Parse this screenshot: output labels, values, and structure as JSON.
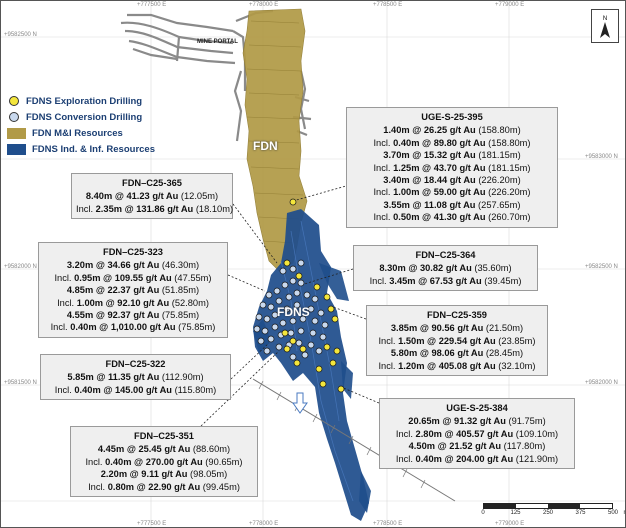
{
  "grid_labels": {
    "top": [
      "+777500 E",
      "+778000 E",
      "+778500 E",
      "+779000 E"
    ],
    "bottom": [
      "+777500 E",
      "+778000 E",
      "+778500 E",
      "+779000 E"
    ],
    "left": [
      "+9582500 N",
      "+9582000 N",
      "+9581500 N"
    ],
    "right": [
      "+9583000 N",
      "+9582500 N",
      "+9582000 N"
    ]
  },
  "legend": {
    "items": [
      {
        "label": "FDNS Exploration Drilling",
        "color": "#f4e63c"
      },
      {
        "label": "FDNS Conversion Drilling",
        "color": "#c9d9ee"
      },
      {
        "label": "FDN M&I Resources",
        "color": "#b19a47"
      },
      {
        "label": "FDNS Ind. & Inf. Resources",
        "color": "#1f4e8c"
      }
    ]
  },
  "labels": {
    "mine_portal": "MINE PORTAL",
    "fdn": "FDN",
    "fdns": "FDNS"
  },
  "scale": {
    "ticks": [
      "0",
      "125",
      "250",
      "375",
      "500"
    ],
    "unit": "m"
  },
  "callouts": [
    {
      "id": "uge-s-25-395",
      "title": "UGE-S-25-395",
      "lines": [
        {
          "pre": "",
          "bold": "1.40m @ 26.25 g/t Au",
          "post": " (158.80m)"
        },
        {
          "pre": "Incl. ",
          "bold": "0.40m @ 89.80 g/t Au",
          "post": " (158.80m)"
        },
        {
          "pre": "",
          "bold": "3.70m @ 15.32 g/t Au",
          "post": " (181.15m)"
        },
        {
          "pre": "Incl. ",
          "bold": "1.25m @ 43.70 g/t Au",
          "post": " (181.15m)"
        },
        {
          "pre": "",
          "bold": "3.40m @ 18.44 g/t Au",
          "post": " (226.20m)"
        },
        {
          "pre": "Incl. ",
          "bold": "1.00m @ 59.00 g/t Au",
          "post": " (226.20m)"
        },
        {
          "pre": "",
          "bold": "3.55m @ 11.08 g/t Au",
          "post": " (257.65m)"
        },
        {
          "pre": "Incl. ",
          "bold": "0.50m @ 41.30 g/t Au",
          "post": " (260.70m)"
        }
      ]
    },
    {
      "id": "fdn-c25-365",
      "title": "FDN–C25-365",
      "lines": [
        {
          "pre": "",
          "bold": "8.40m @ 41.23 g/t Au",
          "post": " (12.05m)"
        },
        {
          "pre": "Incl. ",
          "bold": "2.35m @ 131.86 g/t Au",
          "post": " (18.10m)"
        }
      ]
    },
    {
      "id": "fdn-c25-323",
      "title": "FDN–C25-323",
      "lines": [
        {
          "pre": "",
          "bold": "3.20m @ 34.66 g/t Au",
          "post": " (46.30m)"
        },
        {
          "pre": "Incl. ",
          "bold": "0.95m @ 109.55 g/t Au",
          "post": " (47.55m)"
        },
        {
          "pre": "",
          "bold": "4.85m @ 22.37 g/t Au",
          "post": " (51.85m)"
        },
        {
          "pre": "Incl. ",
          "bold": "1.00m @ 92.10 g/t Au",
          "post": " (52.80m)"
        },
        {
          "pre": "",
          "bold": "4.55m @ 92.37 g/t Au",
          "post": " (75.85m)"
        },
        {
          "pre": "Incl. ",
          "bold": "0.40m @ 1,010.00 g/t Au",
          "post": " (75.85m)"
        }
      ]
    },
    {
      "id": "fdn-c25-364",
      "title": "FDN–C25-364",
      "lines": [
        {
          "pre": "",
          "bold": "8.30m @ 30.82 g/t Au",
          "post": " (35.60m)"
        },
        {
          "pre": "Incl. ",
          "bold": "3.45m @ 67.53 g/t Au",
          "post": " (39.45m)"
        }
      ]
    },
    {
      "id": "fdn-c25-359",
      "title": "FDN–C25-359",
      "lines": [
        {
          "pre": "",
          "bold": "3.85m @ 90.56 g/t Au",
          "post": " (21.50m)"
        },
        {
          "pre": "Incl. ",
          "bold": "1.50m @ 229.54 g/t Au",
          "post": " (23.85m)"
        },
        {
          "pre": "",
          "bold": "5.80m @ 98.06 g/t Au",
          "post": " (28.45m)"
        },
        {
          "pre": "Incl. ",
          "bold": "1.20m @ 405.08 g/t Au",
          "post": " (32.10m)"
        }
      ]
    },
    {
      "id": "fdn-c25-322",
      "title": "FDN–C25-322",
      "lines": [
        {
          "pre": "",
          "bold": "5.85m @ 11.35 g/t Au",
          "post": " (112.90m)"
        },
        {
          "pre": "Incl. ",
          "bold": "0.40m @ 145.00 g/t Au",
          "post": " (115.80m)"
        }
      ]
    },
    {
      "id": "uge-s-25-384",
      "title": "UGE-S-25-384",
      "lines": [
        {
          "pre": "",
          "bold": "20.65m @ 91.32 g/t Au",
          "post": " (91.75m)"
        },
        {
          "pre": "Incl. ",
          "bold": "2.80m @ 405.57 g/t Au",
          "post": " (109.10m)"
        },
        {
          "pre": "",
          "bold": "4.50m @ 21.52 g/t Au",
          "post": " (117.80m)"
        },
        {
          "pre": "Incl. ",
          "bold": "0.40m @ 204.00 g/t Au",
          "post": " (121.90m)"
        }
      ]
    },
    {
      "id": "fdn-c25-351",
      "title": "FDN–C25-351",
      "lines": [
        {
          "pre": "",
          "bold": "4.45m @ 25.45 g/t Au",
          "post": " (88.60m)"
        },
        {
          "pre": "Incl. ",
          "bold": "0.40m @ 270.00 g/t Au",
          "post": " (90.65m)"
        },
        {
          "pre": "",
          "bold": "2.20m @ 9.11 g/t Au",
          "post": " (98.05m)"
        },
        {
          "pre": "Incl. ",
          "bold": "0.80m @ 22.90 g/t Au",
          "post": " (99.45m)"
        }
      ]
    }
  ]
}
